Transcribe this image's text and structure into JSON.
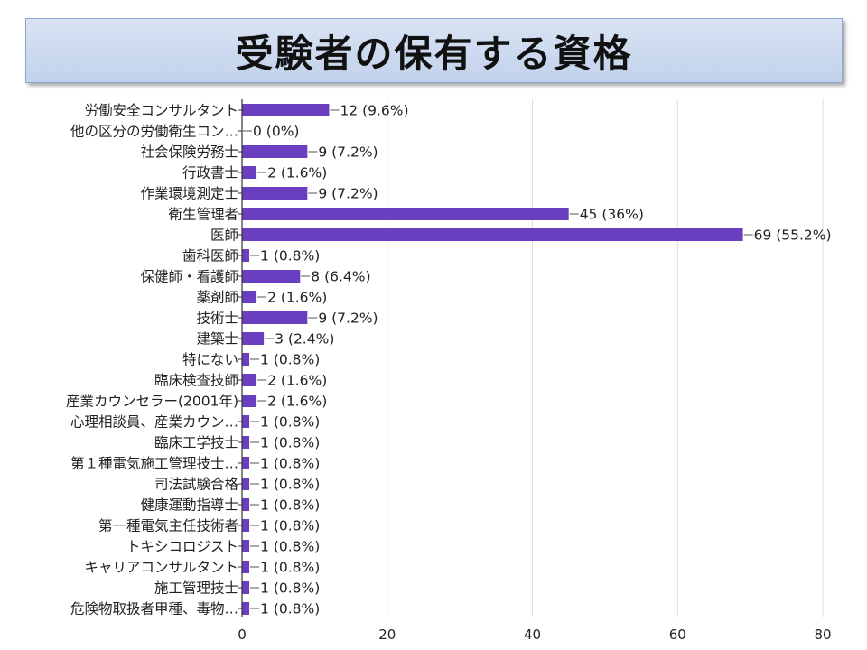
{
  "title": "受験者の保有する資格",
  "colors": {
    "bar": "#6a3fbf",
    "grid": "#dcdcdc",
    "axis": "#333333",
    "banner": "#c8d6ee"
  },
  "chart_data": {
    "type": "bar",
    "orientation": "horizontal",
    "categories": [
      "労働安全コンサルタント",
      "他の区分の労働衛生コン…",
      "社会保険労務士",
      "行政書士",
      "作業環境測定士",
      "衛生管理者",
      "医師",
      "歯科医師",
      "保健師・看護師",
      "薬剤師",
      "技術士",
      "建築士",
      "特にない",
      "臨床検査技師",
      "産業カウンセラー(2001年)",
      "心理相談員、産業カウン…",
      "臨床工学技士",
      "第１種電気施工管理技士…",
      "司法試験合格",
      "健康運動指導士",
      "第一種電気主任技術者",
      "トキシコロジスト",
      "キャリアコンサルタント",
      "施工管理技士",
      "危険物取扱者甲種、毒物…"
    ],
    "values": [
      12,
      0,
      9,
      2,
      9,
      45,
      69,
      1,
      8,
      2,
      9,
      3,
      1,
      2,
      2,
      1,
      1,
      1,
      1,
      1,
      1,
      1,
      1,
      1,
      1
    ],
    "data_labels": [
      "12 (9.6%)",
      "0 (0%)",
      "9 (7.2%)",
      "2 (1.6%)",
      "9 (7.2%)",
      "45 (36%)",
      "69 (55.2%)",
      "1 (0.8%)",
      "8 (6.4%)",
      "2 (1.6%)",
      "9 (7.2%)",
      "3 (2.4%)",
      "1 (0.8%)",
      "2 (1.6%)",
      "2 (1.6%)",
      "1 (0.8%)",
      "1 (0.8%)",
      "1 (0.8%)",
      "1 (0.8%)",
      "1 (0.8%)",
      "1 (0.8%)",
      "1 (0.8%)",
      "1 (0.8%)",
      "1 (0.8%)",
      "1 (0.8%)"
    ],
    "xlim": [
      0,
      80
    ],
    "xticks": [
      0,
      20,
      40,
      60,
      80
    ],
    "grid": true
  }
}
